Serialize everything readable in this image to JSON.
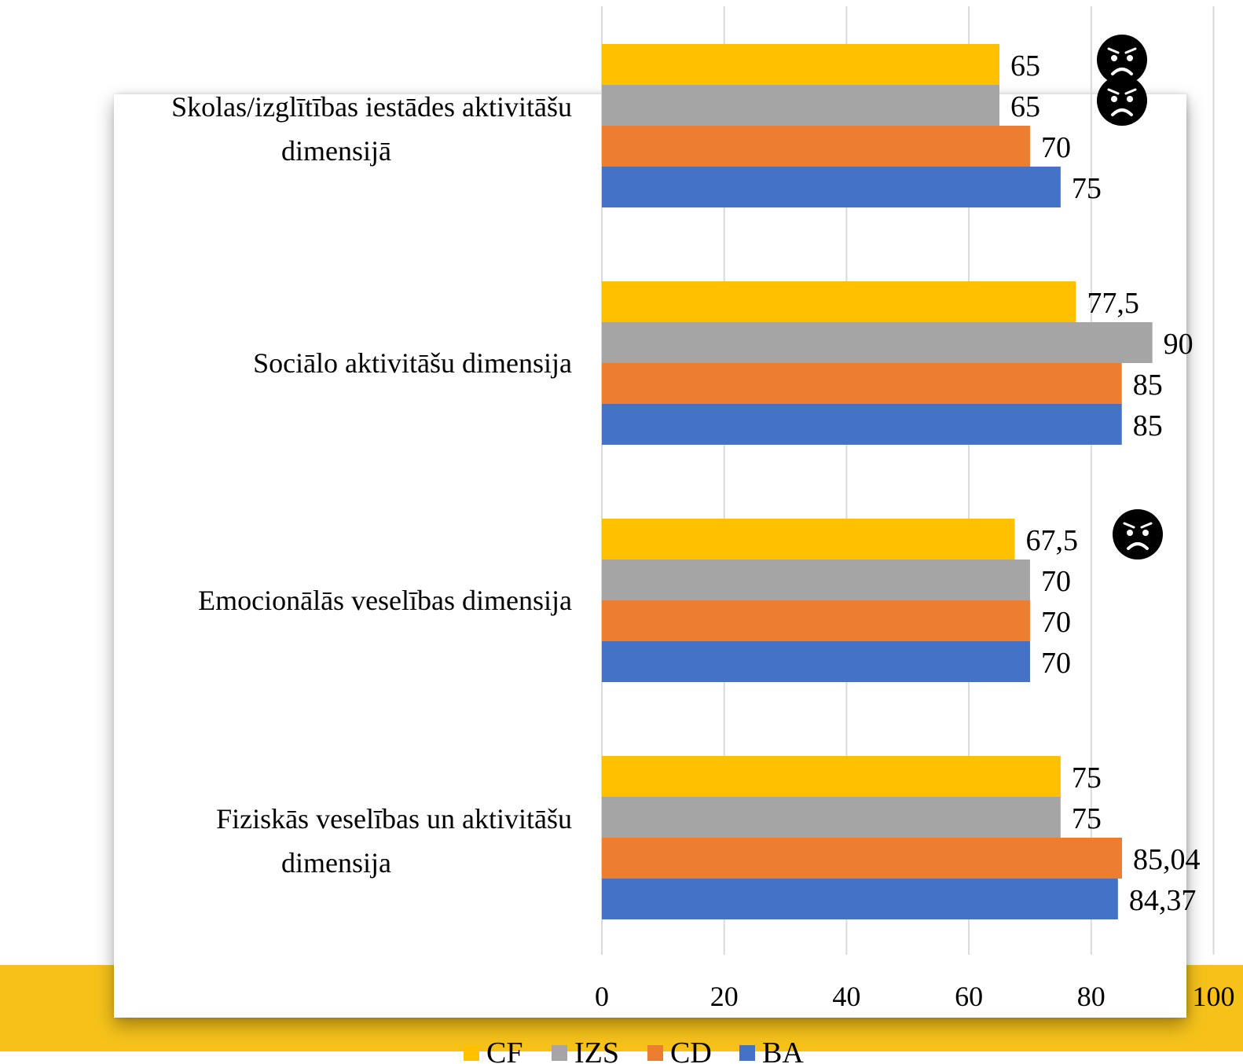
{
  "chart_data": {
    "type": "bar",
    "orientation": "horizontal",
    "categories": [
      "Skolas/izglītības iestādes aktivitāšu dimensijā",
      "Sociālo aktivitāšu dimensija",
      "Emocionālās veselības dimensija",
      "Fiziskās veselības un aktivitāšu dimensija"
    ],
    "series": [
      {
        "name": "CF",
        "color": "#ffc000",
        "values": [
          65,
          77.5,
          67.5,
          75
        ],
        "labels": [
          "65",
          "77,5",
          "67,5",
          "75"
        ]
      },
      {
        "name": "IZS",
        "color": "#a5a5a5",
        "values": [
          65,
          90,
          70,
          75
        ],
        "labels": [
          "65",
          "90",
          "70",
          "75"
        ]
      },
      {
        "name": "CD",
        "color": "#ed7d31",
        "values": [
          70,
          85,
          70,
          85.04
        ],
        "labels": [
          "70",
          "85",
          "70",
          "85,04"
        ]
      },
      {
        "name": "BA",
        "color": "#4472c4",
        "values": [
          75,
          85,
          70,
          84.37
        ],
        "labels": [
          "75",
          "85",
          "70",
          "84,37"
        ]
      }
    ],
    "xlim": [
      0,
      100
    ],
    "ticks": [
      "0",
      "20",
      "40",
      "60",
      "80",
      "100"
    ],
    "grid": true,
    "legend_position": "bottom",
    "annotations": [
      {
        "type": "sad-face-icon",
        "category_index": 0,
        "series": "CF"
      },
      {
        "type": "sad-face-icon",
        "category_index": 0,
        "series": "IZS"
      },
      {
        "type": "sad-face-icon",
        "category_index": 2,
        "series": "CF"
      }
    ]
  }
}
